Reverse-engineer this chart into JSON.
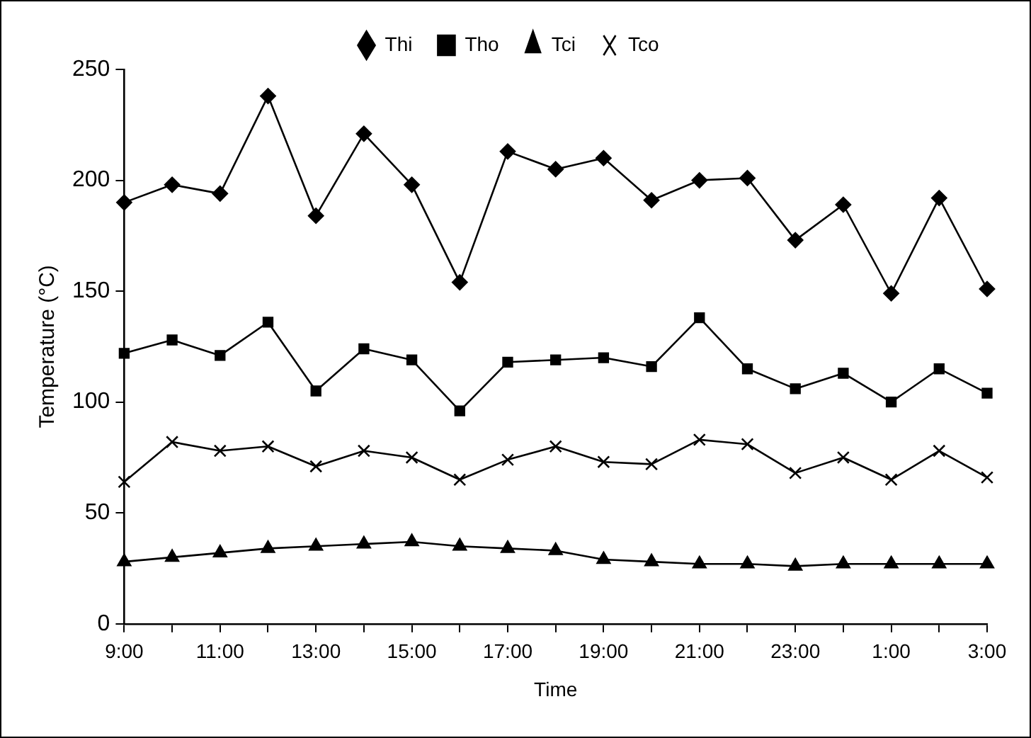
{
  "chart_data": {
    "type": "line",
    "xlabel": "Time",
    "ylabel": "Temperature (°C)",
    "categories": [
      "9:00",
      null,
      "11:00",
      null,
      "13:00",
      null,
      "15:00",
      null,
      "17:00",
      null,
      "19:00",
      null,
      "21:00",
      null,
      "23:00",
      null,
      "1:00",
      null,
      "3:00"
    ],
    "series": [
      {
        "name": "Thi",
        "color": "#000000",
        "marker": "diamond",
        "values": [
          190,
          198,
          194,
          238,
          184,
          221,
          198,
          154,
          213,
          205,
          210,
          191,
          200,
          201,
          173,
          189,
          149,
          192,
          151
        ]
      },
      {
        "name": "Tho",
        "color": "#000000",
        "marker": "square",
        "values": [
          122,
          128,
          121,
          136,
          105,
          124,
          119,
          96,
          118,
          119,
          120,
          116,
          138,
          115,
          106,
          113,
          100,
          115,
          104
        ]
      },
      {
        "name": "Tci",
        "color": "#000000",
        "marker": "triangle",
        "values": [
          28,
          30,
          32,
          34,
          35,
          36,
          37,
          35,
          34,
          33,
          29,
          28,
          27,
          27,
          26,
          27,
          27,
          27,
          27
        ]
      },
      {
        "name": "Tco",
        "color": "#000000",
        "marker": "cross",
        "values": [
          64,
          82,
          78,
          80,
          71,
          78,
          75,
          65,
          74,
          80,
          73,
          72,
          83,
          81,
          68,
          75,
          65,
          78,
          66
        ]
      }
    ],
    "ylim": [
      0,
      250
    ],
    "yticks": [
      0,
      50,
      100,
      150,
      200,
      250
    ],
    "grid": false,
    "legend": "top",
    "line_style": "solid"
  }
}
